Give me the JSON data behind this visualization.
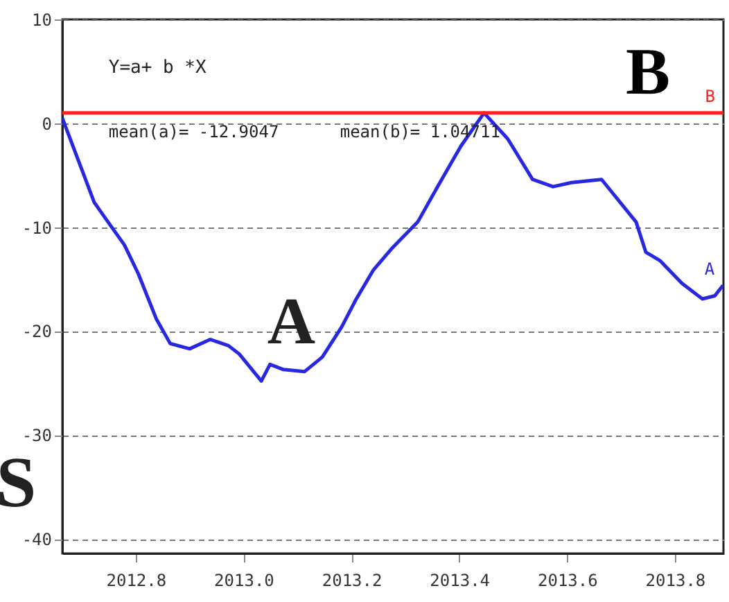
{
  "chart_data": {
    "type": "line",
    "xlim": [
      2012.664,
      2013.89
    ],
    "ylim": [
      -41.4,
      10
    ],
    "xticks": [
      {
        "value": 2012.8,
        "label": "2012.8"
      },
      {
        "value": 2013.0,
        "label": "2013.0"
      },
      {
        "value": 2013.2,
        "label": "2013.2"
      },
      {
        "value": 2013.4,
        "label": "2013.4"
      },
      {
        "value": 2013.6,
        "label": "2013.6"
      },
      {
        "value": 2013.8,
        "label": "2013.8"
      }
    ],
    "yticks": [
      10,
      0,
      -10,
      -20,
      -30,
      -40
    ],
    "grid": "y",
    "marker": "none",
    "line_style": "solid",
    "series": [
      {
        "name": "A",
        "color": "#2828e0",
        "x": [
          2012.664,
          2012.723,
          2012.746,
          2012.779,
          2012.805,
          2012.838,
          2012.864,
          2012.9,
          2012.938,
          2012.972,
          2012.992,
          2013.033,
          2013.049,
          2013.074,
          2013.113,
          2013.146,
          2013.182,
          2013.208,
          2013.241,
          2013.274,
          2013.323,
          2013.362,
          2013.403,
          2013.446,
          2013.49,
          2013.536,
          2013.574,
          2013.608,
          2013.664,
          2013.728,
          2013.746,
          2013.772,
          2013.813,
          2013.851,
          2013.874,
          2013.889
        ],
        "values": [
          0.5,
          -7.6,
          -9.3,
          -11.7,
          -14.5,
          -18.8,
          -21.2,
          -21.7,
          -20.8,
          -21.4,
          -22.2,
          -24.8,
          -23.2,
          -23.7,
          -23.9,
          -22.5,
          -19.6,
          -17.0,
          -14.1,
          -12.1,
          -9.5,
          -5.9,
          -2.2,
          1.0,
          -1.5,
          -5.4,
          -6.1,
          -5.7,
          -5.4,
          -9.5,
          -12.4,
          -13.2,
          -15.4,
          -16.9,
          -16.6,
          -15.6
        ]
      },
      {
        "name": "B",
        "color": "#ff2020",
        "x": [
          2012.664,
          2013.89
        ],
        "values": [
          1,
          1
        ]
      }
    ],
    "annotations": [
      "Y=a+ b *X",
      "mean(a)= -12.9047",
      "mean(b)= 1.04711",
      "S",
      "A",
      {
        "text": "B",
        "x": 2013.75,
        "y": 1
      }
    ]
  }
}
